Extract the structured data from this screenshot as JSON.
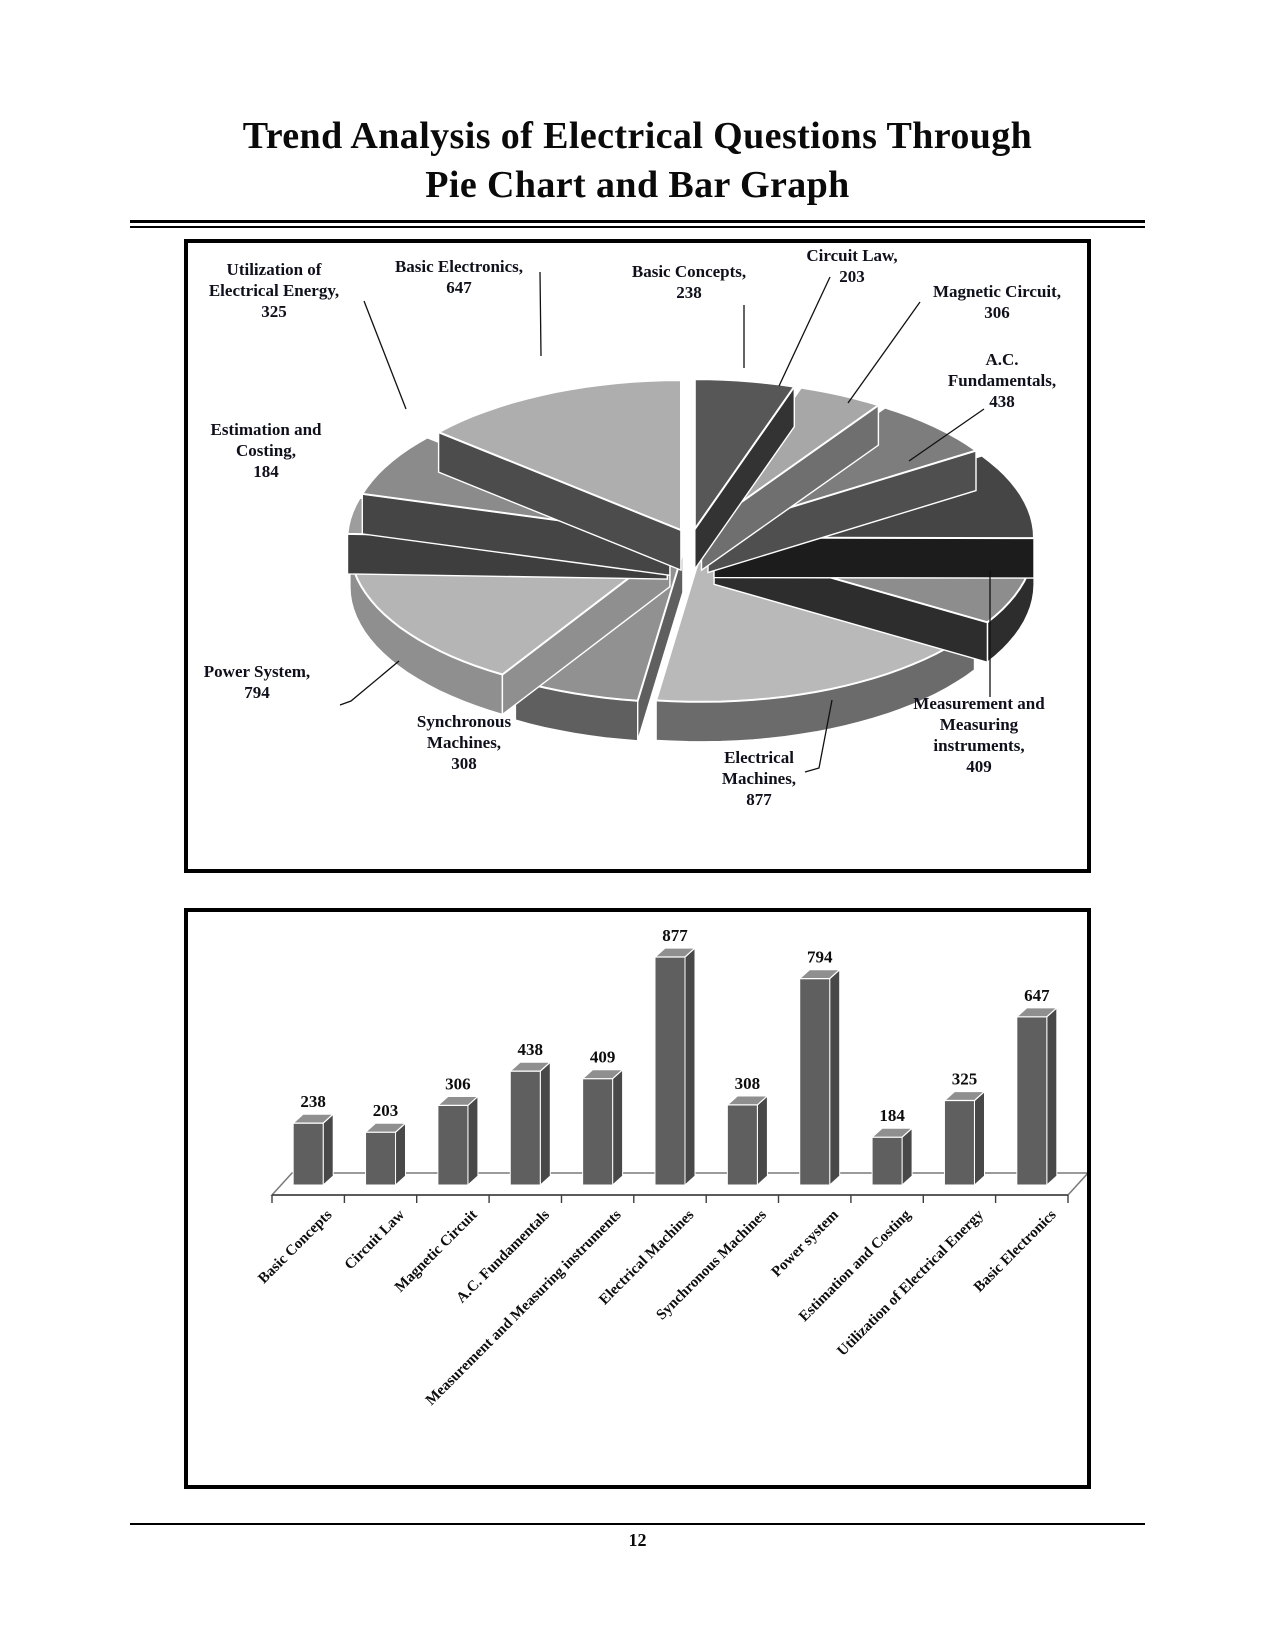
{
  "page": {
    "title_line1": "Trend Analysis of Electrical Questions Through",
    "title_line2": "Pie Chart and Bar Graph",
    "page_number": "12"
  },
  "chart_data": [
    {
      "type": "pie",
      "style": "3d-exploded",
      "start_angle_deg": 0,
      "direction": "clockwise",
      "slices": [
        {
          "label": "Basic Concepts",
          "value": 238,
          "label_lines": [
            "Basic Concepts,",
            "238"
          ],
          "top_color": "#575757",
          "side_color": "#333333"
        },
        {
          "label": "Circuit Law",
          "value": 203,
          "label_lines": [
            "Circuit Law,",
            "203"
          ],
          "top_color": "#a7a7a7",
          "side_color": "#6f6f6f"
        },
        {
          "label": "Magnetic Circuit",
          "value": 306,
          "label_lines": [
            "Magnetic Circuit,",
            "306"
          ],
          "top_color": "#7d7d7d",
          "side_color": "#4f4f4f"
        },
        {
          "label": "A.C. Fundamentals",
          "value": 438,
          "label_lines": [
            "A.C.",
            "Fundamentals,",
            "438"
          ],
          "top_color": "#454545",
          "side_color": "#1c1c1c"
        },
        {
          "label": "Measurement and Measuring instruments",
          "value": 409,
          "label_lines": [
            "Measurement and",
            "Measuring",
            "instruments,",
            "409"
          ],
          "top_color": "#8d8d8d",
          "side_color": "#2d2d2d"
        },
        {
          "label": "Electrical Machines",
          "value": 877,
          "label_lines": [
            "Electrical",
            "Machines,",
            "877"
          ],
          "top_color": "#b9b9b9",
          "side_color": "#6b6b6b"
        },
        {
          "label": "Synchronous Machines",
          "value": 308,
          "label_lines": [
            "Synchronous",
            "Machines,",
            "308"
          ],
          "top_color": "#919191",
          "side_color": "#5f5f5f"
        },
        {
          "label": "Power System",
          "value": 794,
          "label_lines": [
            "Power System,",
            "794"
          ],
          "top_color": "#b5b5b5",
          "side_color": "#8f8f8f"
        },
        {
          "label": "Estimation and Costing",
          "value": 184,
          "label_lines": [
            "Estimation and",
            "Costing,",
            "184"
          ],
          "top_color": "#9d9d9d",
          "side_color": "#3e3e3e"
        },
        {
          "label": "Utilization of Electrical Energy",
          "value": 325,
          "label_lines": [
            "Utilization of",
            "Electrical Energy,",
            "325"
          ],
          "top_color": "#8b8b8b",
          "side_color": "#454545"
        },
        {
          "label": "Basic Electronics",
          "value": 647,
          "label_lines": [
            "Basic Electronics,",
            "647"
          ],
          "top_color": "#aeaeae",
          "side_color": "#4c4c4c"
        }
      ]
    },
    {
      "type": "bar",
      "style": "3d-column",
      "categories": [
        "Basic Concepts",
        "Circuit Law",
        "Magnetic Circuit",
        "A.C. Fundamentals",
        "Measurement and Measuring instruments",
        "Electrical Machines",
        "Synchronous Machines",
        "Power system",
        "Estimation and Costing",
        "Utilization of Electrical Energy",
        "Basic Electronics"
      ],
      "values": [
        238,
        203,
        306,
        438,
        409,
        877,
        308,
        794,
        184,
        325,
        647
      ],
      "data_labels": true,
      "ylim": [
        0,
        900
      ],
      "bar_front_color": "#5f5f5f",
      "bar_side_color": "#484848",
      "bar_top_color": "#8f8f8f"
    }
  ]
}
